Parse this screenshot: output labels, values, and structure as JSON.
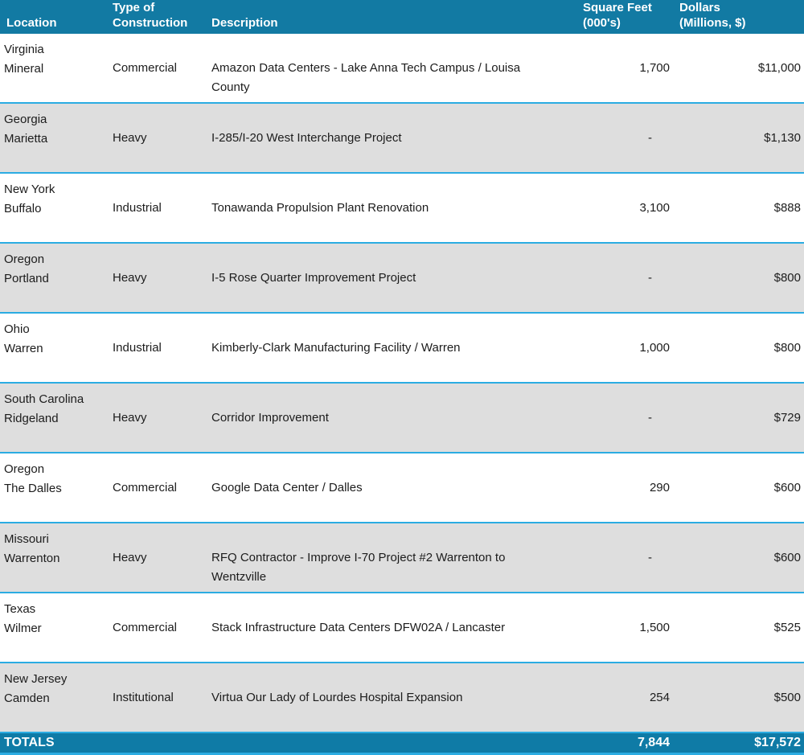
{
  "header": {
    "columns": [
      "Location",
      "Type of\nConstruction",
      "Description",
      "Square Feet\n(000's)",
      "Dollars\n(Millions, $)"
    ]
  },
  "rows": [
    {
      "state": "Virginia",
      "city": "Mineral",
      "type": "Commercial",
      "description": "Amazon Data Centers - Lake Anna Tech Campus / Louisa County",
      "square_feet": "1,700",
      "dollars": "$11,000"
    },
    {
      "state": "Georgia",
      "city": "Marietta",
      "type": "Heavy",
      "description": "I-285/I-20 West Interchange Project",
      "square_feet": "-",
      "dollars": "$1,130"
    },
    {
      "state": "New York",
      "city": "Buffalo",
      "type": "Industrial",
      "description": "Tonawanda Propulsion Plant Renovation",
      "square_feet": "3,100",
      "dollars": "$888"
    },
    {
      "state": "Oregon",
      "city": "Portland",
      "type": "Heavy",
      "description": "I-5 Rose Quarter Improvement Project",
      "square_feet": "-",
      "dollars": "$800"
    },
    {
      "state": "Ohio",
      "city": "Warren",
      "type": "Industrial",
      "description": "Kimberly-Clark Manufacturing Facility / Warren",
      "square_feet": "1,000",
      "dollars": "$800"
    },
    {
      "state": "South Carolina",
      "city": "Ridgeland",
      "type": "Heavy",
      "description": "Corridor Improvement",
      "square_feet": "-",
      "dollars": "$729"
    },
    {
      "state": "Oregon",
      "city": "The Dalles",
      "type": "Commercial",
      "description": "Google Data Center / Dalles",
      "square_feet": "290",
      "dollars": "$600"
    },
    {
      "state": "Missouri",
      "city": "Warrenton",
      "type": "Heavy",
      "description": "RFQ Contractor - Improve I-70 Project #2 Warrenton to Wentzville",
      "square_feet": "-",
      "dollars": "$600"
    },
    {
      "state": "Texas",
      "city": "Wilmer",
      "type": "Commercial",
      "description": "Stack Infrastructure Data Centers DFW02A / Lancaster",
      "square_feet": "1,500",
      "dollars": "$525"
    },
    {
      "state": "New Jersey",
      "city": "Camden",
      "type": "Institutional",
      "description": "Virtua Our Lady of Lourdes Hospital Expansion",
      "square_feet": "254",
      "dollars": "$500"
    }
  ],
  "totals": {
    "label": "TOTALS",
    "square_feet": "7,844",
    "dollars": "$17,572"
  },
  "colors": {
    "header_bg": "#127AA3",
    "totals_bg": "#0F7BA6",
    "separator": "#2BACE2",
    "alt_row_bg": "#DEDEDE",
    "body_text": "#1C1C1C",
    "header_text": "#FFFFFF"
  }
}
